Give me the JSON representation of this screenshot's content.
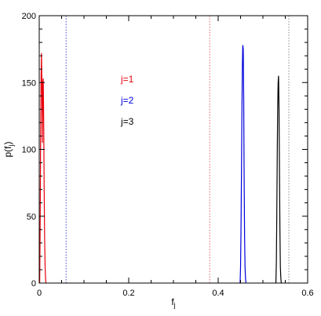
{
  "chart_data": {
    "type": "line",
    "title": "",
    "xlabel": "f",
    "xlabel_sub": "j",
    "ylabel": "p(f",
    "ylabel_sub": "j",
    "ylabel_close": ")",
    "xlim": [
      0,
      0.6
    ],
    "ylim": [
      0,
      200
    ],
    "xticks": [
      0,
      0.2,
      0.4,
      0.6
    ],
    "xtick_labels": [
      "0",
      "0.2",
      "0.4",
      "0.6"
    ],
    "yticks": [
      0,
      50,
      100,
      150,
      200
    ],
    "ytick_labels": [
      "0",
      "50",
      "100",
      "150",
      "200"
    ],
    "grid": false,
    "legend_position": "upper-center",
    "series": [
      {
        "name": "j=1",
        "color": "#e8000b",
        "points": [
          [
            0.001,
            0
          ],
          [
            0.002,
            40
          ],
          [
            0.003,
            105
          ],
          [
            0.004,
            150
          ],
          [
            0.005,
            172
          ],
          [
            0.006,
            150
          ],
          [
            0.007,
            105
          ],
          [
            0.008,
            150
          ],
          [
            0.009,
            153
          ],
          [
            0.01,
            120
          ],
          [
            0.011,
            70
          ],
          [
            0.012,
            35
          ],
          [
            0.013,
            14
          ],
          [
            0.014,
            4
          ],
          [
            0.015,
            0
          ]
        ]
      },
      {
        "name": "j=2",
        "color": "#0000dd",
        "points": [
          [
            0.449,
            0
          ],
          [
            0.45,
            12
          ],
          [
            0.451,
            40
          ],
          [
            0.452,
            80
          ],
          [
            0.453,
            125
          ],
          [
            0.454,
            160
          ],
          [
            0.455,
            178
          ],
          [
            0.456,
            175
          ],
          [
            0.457,
            140
          ],
          [
            0.458,
            80
          ],
          [
            0.459,
            35
          ],
          [
            0.46,
            12
          ],
          [
            0.461,
            4
          ],
          [
            0.462,
            0
          ]
        ]
      },
      {
        "name": "j=3",
        "color": "#000000",
        "points": [
          [
            0.529,
            0
          ],
          [
            0.53,
            15
          ],
          [
            0.531,
            50
          ],
          [
            0.532,
            95
          ],
          [
            0.533,
            130
          ],
          [
            0.534,
            150
          ],
          [
            0.535,
            155
          ],
          [
            0.536,
            130
          ],
          [
            0.537,
            85
          ],
          [
            0.538,
            40
          ],
          [
            0.539,
            12
          ],
          [
            0.54,
            4
          ],
          [
            0.541,
            0
          ]
        ]
      }
    ],
    "vlines": [
      {
        "x": 0.06,
        "color": "#4444cc",
        "style": "dotted"
      },
      {
        "x": 0.381,
        "color": "#e86060",
        "style": "dotted"
      },
      {
        "x": 0.558,
        "color": "#888888",
        "style": "dotted"
      }
    ]
  }
}
